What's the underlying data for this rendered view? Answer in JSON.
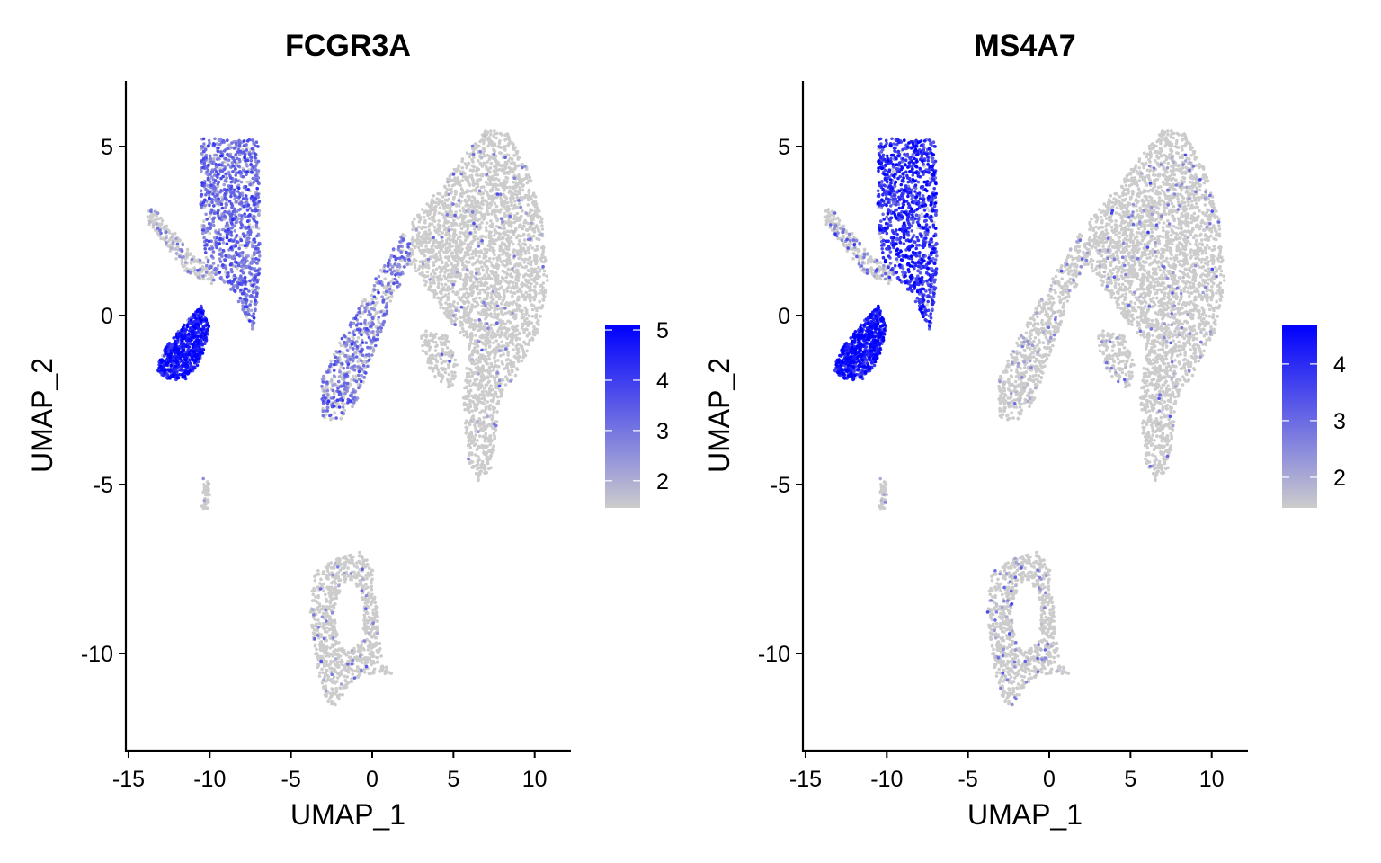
{
  "chart_data": [
    {
      "type": "scatter",
      "title": "FCGR3A",
      "xlabel": "UMAP_1",
      "ylabel": "UMAP_2",
      "xlim": [
        -15.2,
        12.1
      ],
      "ylim": [
        -12.9,
        6.9
      ],
      "xticks": [
        -15,
        -10,
        -5,
        0,
        5,
        10
      ],
      "yticks": [
        5,
        0,
        -5,
        -10
      ],
      "grid": false,
      "legend": {
        "position": "right",
        "type": "colorbar",
        "range": [
          1.46,
          5.09
        ],
        "ticks": [
          5,
          4,
          3,
          2
        ],
        "low_color": "#CCCCCC",
        "high_color": "#0000FF"
      },
      "expression": {
        "cd16_mono": [
          0.85,
          3.0
        ],
        "arm_tail": [
          0.25,
          2.4
        ],
        "cd14_mono_left": [
          0.97,
          4.4
        ],
        "myeloid_arm": [
          0.65,
          2.9
        ],
        "t_nk_main": [
          0.03,
          2.6
        ],
        "t_nk_lobe": [
          0.03,
          2.5
        ],
        "small_cluster": [
          0.15,
          2.0
        ],
        "b_cells": [
          0.05,
          2.6
        ]
      }
    },
    {
      "type": "scatter",
      "title": "MS4A7",
      "xlabel": "UMAP_1",
      "ylabel": "UMAP_2",
      "xlim": [
        -15.2,
        12.1
      ],
      "ylim": [
        -12.9,
        6.9
      ],
      "xticks": [
        -15,
        -10,
        -5,
        0,
        5,
        10
      ],
      "yticks": [
        5,
        0,
        -5,
        -10
      ],
      "grid": false,
      "legend": {
        "position": "right",
        "type": "colorbar",
        "range": [
          1.46,
          4.68
        ],
        "ticks": [
          4,
          3,
          2
        ],
        "low_color": "#CCCCCC",
        "high_color": "#0000FF"
      },
      "expression": {
        "cd16_mono": [
          0.95,
          3.8
        ],
        "arm_tail": [
          0.3,
          2.6
        ],
        "cd14_mono_left": [
          0.97,
          4.1
        ],
        "myeloid_arm": [
          0.1,
          2.2
        ],
        "t_nk_main": [
          0.05,
          2.4
        ],
        "t_nk_lobe": [
          0.05,
          2.3
        ],
        "small_cluster": [
          0.2,
          2.0
        ],
        "b_cells": [
          0.12,
          2.3
        ]
      }
    }
  ],
  "clusters": [
    {
      "id": "cd16_mono",
      "n": 1100,
      "poly": [
        [
          -10.5,
          5.25
        ],
        [
          -7,
          5.2
        ],
        [
          -6.9,
          1.2
        ],
        [
          -7.3,
          -0.5
        ],
        [
          -8.5,
          0.6
        ],
        [
          -10.2,
          1.6
        ],
        [
          -10.6,
          3
        ]
      ]
    },
    {
      "id": "arm_tail",
      "n": 220,
      "poly": [
        [
          -13.8,
          3.2
        ],
        [
          -13.3,
          3.1
        ],
        [
          -11,
          1.8
        ],
        [
          -9.5,
          1.4
        ],
        [
          -9.8,
          0.9
        ],
        [
          -11.5,
          1.3
        ],
        [
          -13.2,
          2.4
        ],
        [
          -13.9,
          2.8
        ]
      ]
    },
    {
      "id": "cd14_mono_left",
      "n": 700,
      "poly": [
        [
          -12.8,
          -1
        ],
        [
          -11.5,
          -0.2
        ],
        [
          -10.5,
          0.3
        ],
        [
          -10,
          -0.4
        ],
        [
          -10.6,
          -1.4
        ],
        [
          -11.5,
          -1.9
        ],
        [
          -12.6,
          -1.9
        ],
        [
          -13.3,
          -1.6
        ]
      ]
    },
    {
      "id": "myeloid_arm",
      "n": 650,
      "poly": [
        [
          -3.2,
          -2
        ],
        [
          -2,
          -0.8
        ],
        [
          -0.5,
          0.5
        ],
        [
          0.8,
          1.6
        ],
        [
          2,
          2.5
        ],
        [
          2.6,
          1.8
        ],
        [
          1.2,
          0.4
        ],
        [
          0,
          -1.2
        ],
        [
          -1,
          -2.6
        ],
        [
          -2.2,
          -3.2
        ],
        [
          -3.1,
          -3
        ]
      ]
    },
    {
      "id": "t_nk_main",
      "n": 3000,
      "poly": [
        [
          2.5,
          2.8
        ],
        [
          4.2,
          3.8
        ],
        [
          5.8,
          4.8
        ],
        [
          7,
          5.5
        ],
        [
          8.3,
          5.4
        ],
        [
          9.6,
          4.3
        ],
        [
          10.5,
          2.8
        ],
        [
          10.8,
          1
        ],
        [
          10.2,
          -0.5
        ],
        [
          8.8,
          -1.8
        ],
        [
          7.8,
          -2.5
        ],
        [
          7.4,
          -4.5
        ],
        [
          6.6,
          -5
        ],
        [
          5.8,
          -4.2
        ],
        [
          5.6,
          -2.5
        ],
        [
          6,
          -0.8
        ],
        [
          4.8,
          -0.2
        ],
        [
          3.4,
          0.8
        ],
        [
          2.2,
          1.6
        ]
      ]
    },
    {
      "id": "t_nk_lobe",
      "n": 150,
      "poly": [
        [
          3,
          -0.4
        ],
        [
          4.6,
          -0.6
        ],
        [
          5.4,
          -1.6
        ],
        [
          4.8,
          -2.2
        ],
        [
          3.8,
          -1.8
        ],
        [
          3.1,
          -1.2
        ]
      ]
    },
    {
      "id": "small_cluster",
      "n": 40,
      "poly": [
        [
          -10.4,
          -4.8
        ],
        [
          -10.0,
          -4.9
        ],
        [
          -10.0,
          -5.7
        ],
        [
          -10.5,
          -5.8
        ]
      ]
    },
    {
      "id": "b_cells",
      "n": 850,
      "poly": [
        [
          -3.6,
          -7.6
        ],
        [
          -2.2,
          -7.2
        ],
        [
          -0.8,
          -7
        ],
        [
          0,
          -7.4
        ],
        [
          0.3,
          -8.8
        ],
        [
          0.6,
          -10.2
        ],
        [
          1.3,
          -10.6
        ],
        [
          -0.5,
          -10.6
        ],
        [
          -1.6,
          -11.0
        ],
        [
          -2.2,
          -11.6
        ],
        [
          -2.8,
          -11.4
        ],
        [
          -3.4,
          -10.4
        ],
        [
          -3.8,
          -8.8
        ]
      ],
      "hole": [
        -1.4,
        -8.9,
        0.9,
        1.0
      ]
    }
  ]
}
